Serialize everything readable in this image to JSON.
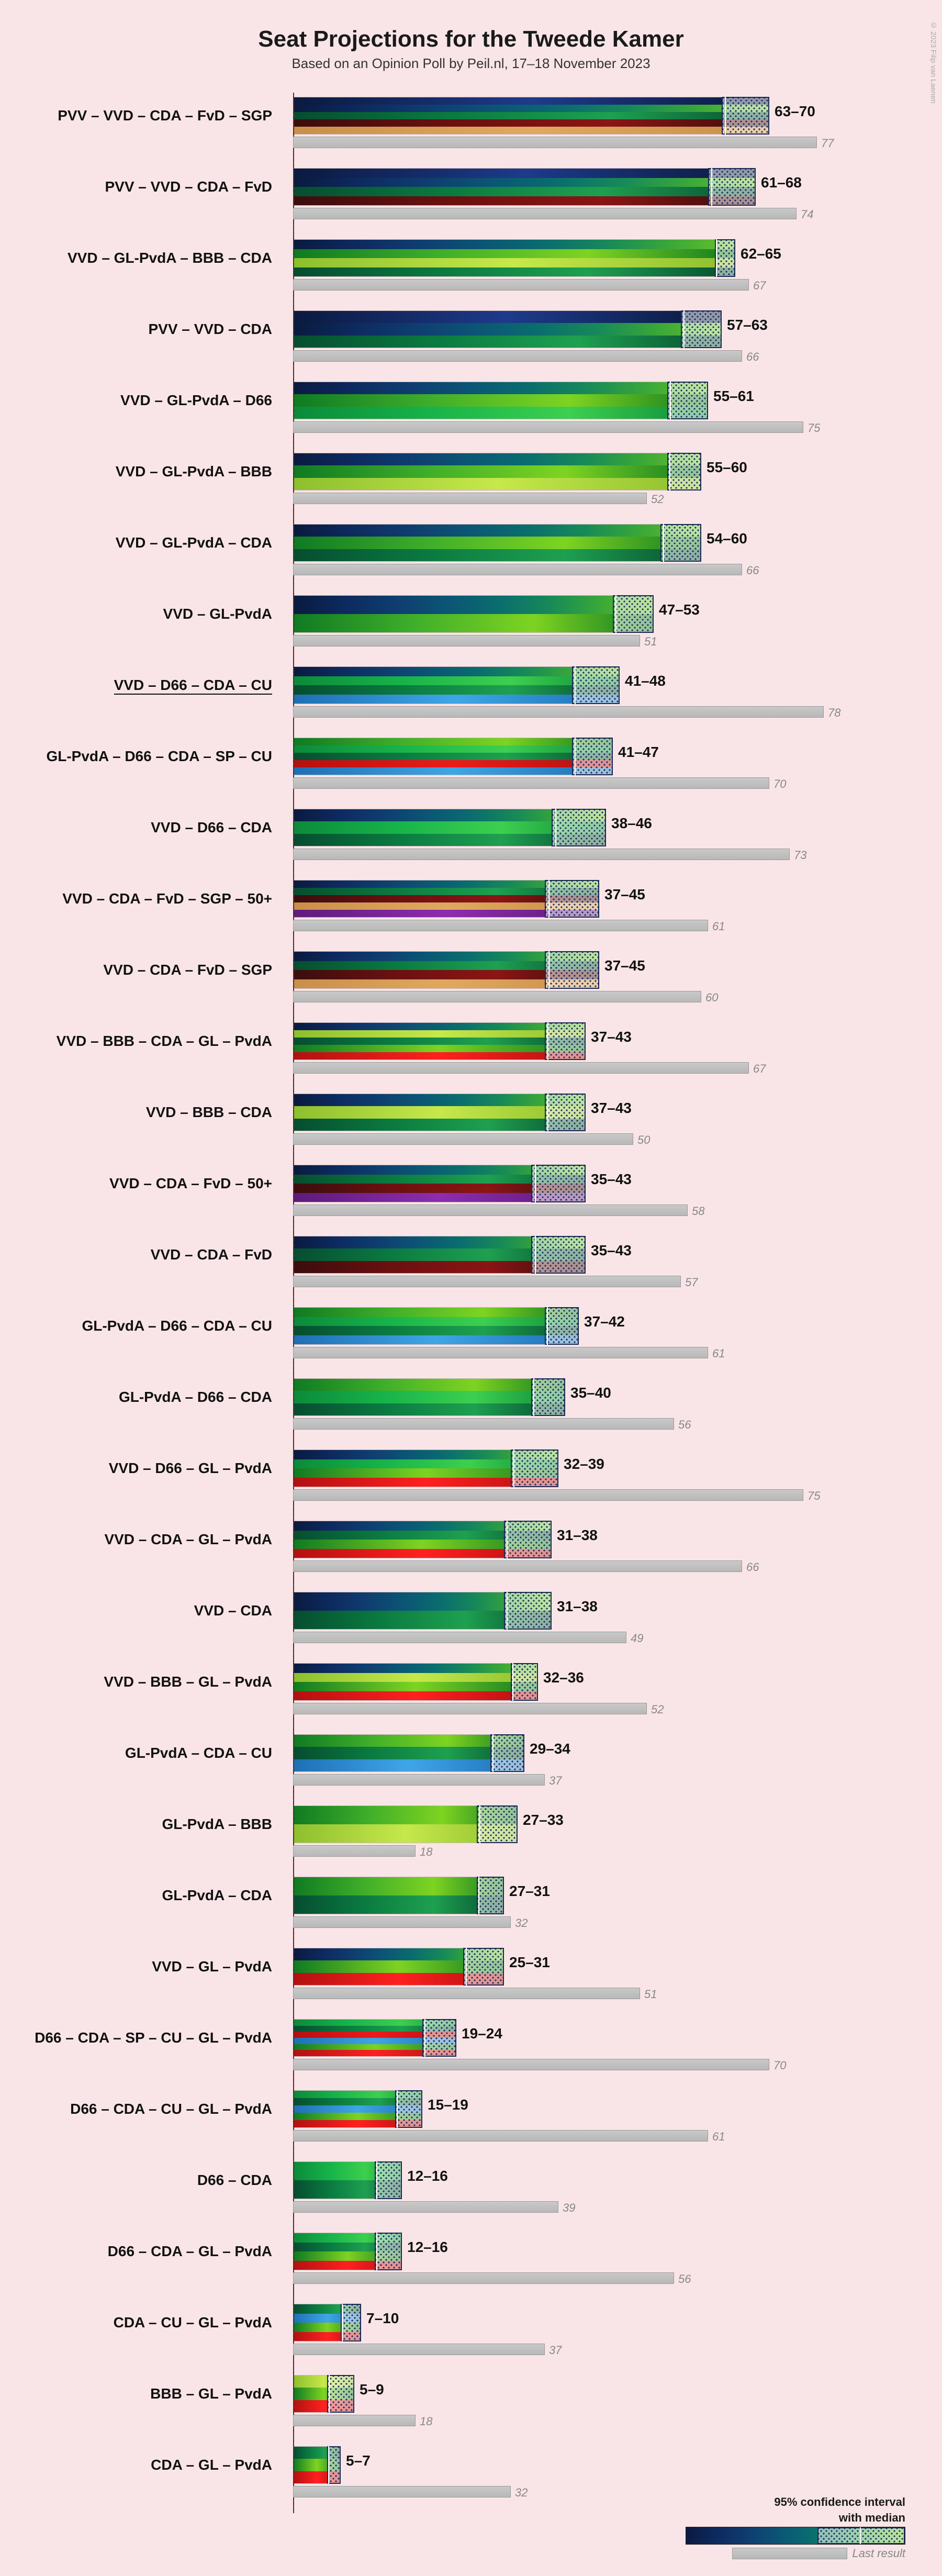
{
  "title": "Seat Projections for the Tweede Kamer",
  "subtitle": "Based on an Opinion Poll by Peil.nl, 17–18 November 2023",
  "copyright": "© 2023 Filip van Laenen",
  "x_axis": {
    "max": 80,
    "minor_step": 2,
    "major_every": 10,
    "majority_line": 76
  },
  "party_colors": {
    "PVV": "linear-gradient(90deg,#0a1a3f,#1e3a8a,#0a1a3f)",
    "VVD": "linear-gradient(90deg,#0a1a3f,#0d2a5f,#0f3d70,#0b5575,#0a6d6e,#178a58,#3ba838,#6bc22a)",
    "CDA": "linear-gradient(90deg,#064d30,#0a7a40,#1ea050,#064d30)",
    "FvD": "linear-gradient(90deg,#3b0d0d,#6b1010,#8a1515,#3b0d0d)",
    "SGP": "linear-gradient(90deg,#c98f4a,#e0a85f,#c98f4a)",
    "GL-PvdA": "linear-gradient(90deg,#0f7a22,#3fae2a,#7ed321,#0f7a22)",
    "BBB": "linear-gradient(90deg,#8dbf2e,#c6e84b,#8dbf2e)",
    "D66": "linear-gradient(90deg,#0b8a3a,#17b34a,#3dcf4f,#0b8a3a)",
    "CU": "linear-gradient(90deg,#1e6fb4,#3fa6e6,#1e6fb4)",
    "SP": "linear-gradient(90deg,#b31010,#ec1b1b,#b31010)",
    "50+": "linear-gradient(90deg,#5e1a7a,#8d2cb0,#5e1a7a)",
    "GL": "linear-gradient(90deg,#0f7a22,#7ed321,#0f7a22)",
    "PvdA": "linear-gradient(90deg,#b31010,#ff2020,#b31010)"
  },
  "legend": {
    "line1": "95% confidence interval",
    "line2": "with median",
    "last": "Last result"
  },
  "coalitions": [
    {
      "parties": [
        "PVV",
        "VVD",
        "CDA",
        "FvD",
        "SGP"
      ],
      "lo": 63,
      "hi": 70,
      "med": 67,
      "last": 77
    },
    {
      "parties": [
        "PVV",
        "VVD",
        "CDA",
        "FvD"
      ],
      "lo": 61,
      "hi": 68,
      "med": 65,
      "last": 74
    },
    {
      "parties": [
        "VVD",
        "GL-PvdA",
        "BBB",
        "CDA"
      ],
      "lo": 62,
      "hi": 65,
      "med": 63,
      "last": 67
    },
    {
      "parties": [
        "PVV",
        "VVD",
        "CDA"
      ],
      "lo": 57,
      "hi": 63,
      "med": 60,
      "last": 66
    },
    {
      "parties": [
        "VVD",
        "GL-PvdA",
        "D66"
      ],
      "lo": 55,
      "hi": 61,
      "med": 58,
      "last": 75
    },
    {
      "parties": [
        "VVD",
        "GL-PvdA",
        "BBB"
      ],
      "lo": 55,
      "hi": 60,
      "med": 57,
      "last": 52
    },
    {
      "parties": [
        "VVD",
        "GL-PvdA",
        "CDA"
      ],
      "lo": 54,
      "hi": 60,
      "med": 57,
      "last": 66
    },
    {
      "parties": [
        "VVD",
        "GL-PvdA"
      ],
      "lo": 47,
      "hi": 53,
      "med": 50,
      "last": 51
    },
    {
      "parties": [
        "VVD",
        "D66",
        "CDA",
        "CU"
      ],
      "underline": true,
      "lo": 41,
      "hi": 48,
      "med": 44,
      "last": 78
    },
    {
      "parties": [
        "GL-PvdA",
        "D66",
        "CDA",
        "SP",
        "CU"
      ],
      "lo": 41,
      "hi": 47,
      "med": 44,
      "last": 70
    },
    {
      "parties": [
        "VVD",
        "D66",
        "CDA"
      ],
      "lo": 38,
      "hi": 46,
      "med": 42,
      "last": 73
    },
    {
      "parties": [
        "VVD",
        "CDA",
        "FvD",
        "SGP",
        "50+"
      ],
      "lo": 37,
      "hi": 45,
      "med": 41,
      "last": 61
    },
    {
      "parties": [
        "VVD",
        "CDA",
        "FvD",
        "SGP"
      ],
      "lo": 37,
      "hi": 45,
      "med": 41,
      "last": 60
    },
    {
      "parties": [
        "VVD",
        "BBB",
        "CDA",
        "GL",
        "PvdA"
      ],
      "lo": 37,
      "hi": 43,
      "med": 40,
      "last": 67
    },
    {
      "parties": [
        "VVD",
        "BBB",
        "CDA"
      ],
      "lo": 37,
      "hi": 43,
      "med": 40,
      "last": 50
    },
    {
      "parties": [
        "VVD",
        "CDA",
        "FvD",
        "50+"
      ],
      "lo": 35,
      "hi": 43,
      "med": 39,
      "last": 58
    },
    {
      "parties": [
        "VVD",
        "CDA",
        "FvD"
      ],
      "lo": 35,
      "hi": 43,
      "med": 39,
      "last": 57
    },
    {
      "parties": [
        "GL-PvdA",
        "D66",
        "CDA",
        "CU"
      ],
      "lo": 37,
      "hi": 42,
      "med": 39,
      "last": 61
    },
    {
      "parties": [
        "GL-PvdA",
        "D66",
        "CDA"
      ],
      "lo": 35,
      "hi": 40,
      "med": 37,
      "last": 56
    },
    {
      "parties": [
        "VVD",
        "D66",
        "GL",
        "PvdA"
      ],
      "lo": 32,
      "hi": 39,
      "med": 35,
      "last": 75
    },
    {
      "parties": [
        "VVD",
        "CDA",
        "GL",
        "PvdA"
      ],
      "lo": 31,
      "hi": 38,
      "med": 34,
      "last": 66
    },
    {
      "parties": [
        "VVD",
        "CDA"
      ],
      "lo": 31,
      "hi": 38,
      "med": 34,
      "last": 49
    },
    {
      "parties": [
        "VVD",
        "BBB",
        "GL",
        "PvdA"
      ],
      "lo": 32,
      "hi": 36,
      "med": 34,
      "last": 52
    },
    {
      "parties": [
        "GL-PvdA",
        "CDA",
        "CU"
      ],
      "lo": 29,
      "hi": 34,
      "med": 31,
      "last": 37
    },
    {
      "parties": [
        "GL-PvdA",
        "BBB"
      ],
      "lo": 27,
      "hi": 33,
      "med": 30,
      "last": 18
    },
    {
      "parties": [
        "GL-PvdA",
        "CDA"
      ],
      "lo": 27,
      "hi": 31,
      "med": 29,
      "last": 32
    },
    {
      "parties": [
        "VVD",
        "GL",
        "PvdA"
      ],
      "lo": 25,
      "hi": 31,
      "med": 28,
      "last": 51
    },
    {
      "parties": [
        "D66",
        "CDA",
        "SP",
        "CU",
        "GL",
        "PvdA"
      ],
      "lo": 19,
      "hi": 24,
      "med": 21,
      "last": 70
    },
    {
      "parties": [
        "D66",
        "CDA",
        "CU",
        "GL",
        "PvdA"
      ],
      "lo": 15,
      "hi": 19,
      "med": 17,
      "last": 61
    },
    {
      "parties": [
        "D66",
        "CDA"
      ],
      "lo": 12,
      "hi": 16,
      "med": 14,
      "last": 39
    },
    {
      "parties": [
        "D66",
        "CDA",
        "GL",
        "PvdA"
      ],
      "lo": 12,
      "hi": 16,
      "med": 14,
      "last": 56
    },
    {
      "parties": [
        "CDA",
        "CU",
        "GL",
        "PvdA"
      ],
      "lo": 7,
      "hi": 10,
      "med": 8,
      "last": 37
    },
    {
      "parties": [
        "BBB",
        "GL",
        "PvdA"
      ],
      "lo": 5,
      "hi": 9,
      "med": 7,
      "last": 18
    },
    {
      "parties": [
        "CDA",
        "GL",
        "PvdA"
      ],
      "lo": 5,
      "hi": 7,
      "med": 6,
      "last": 32
    }
  ]
}
